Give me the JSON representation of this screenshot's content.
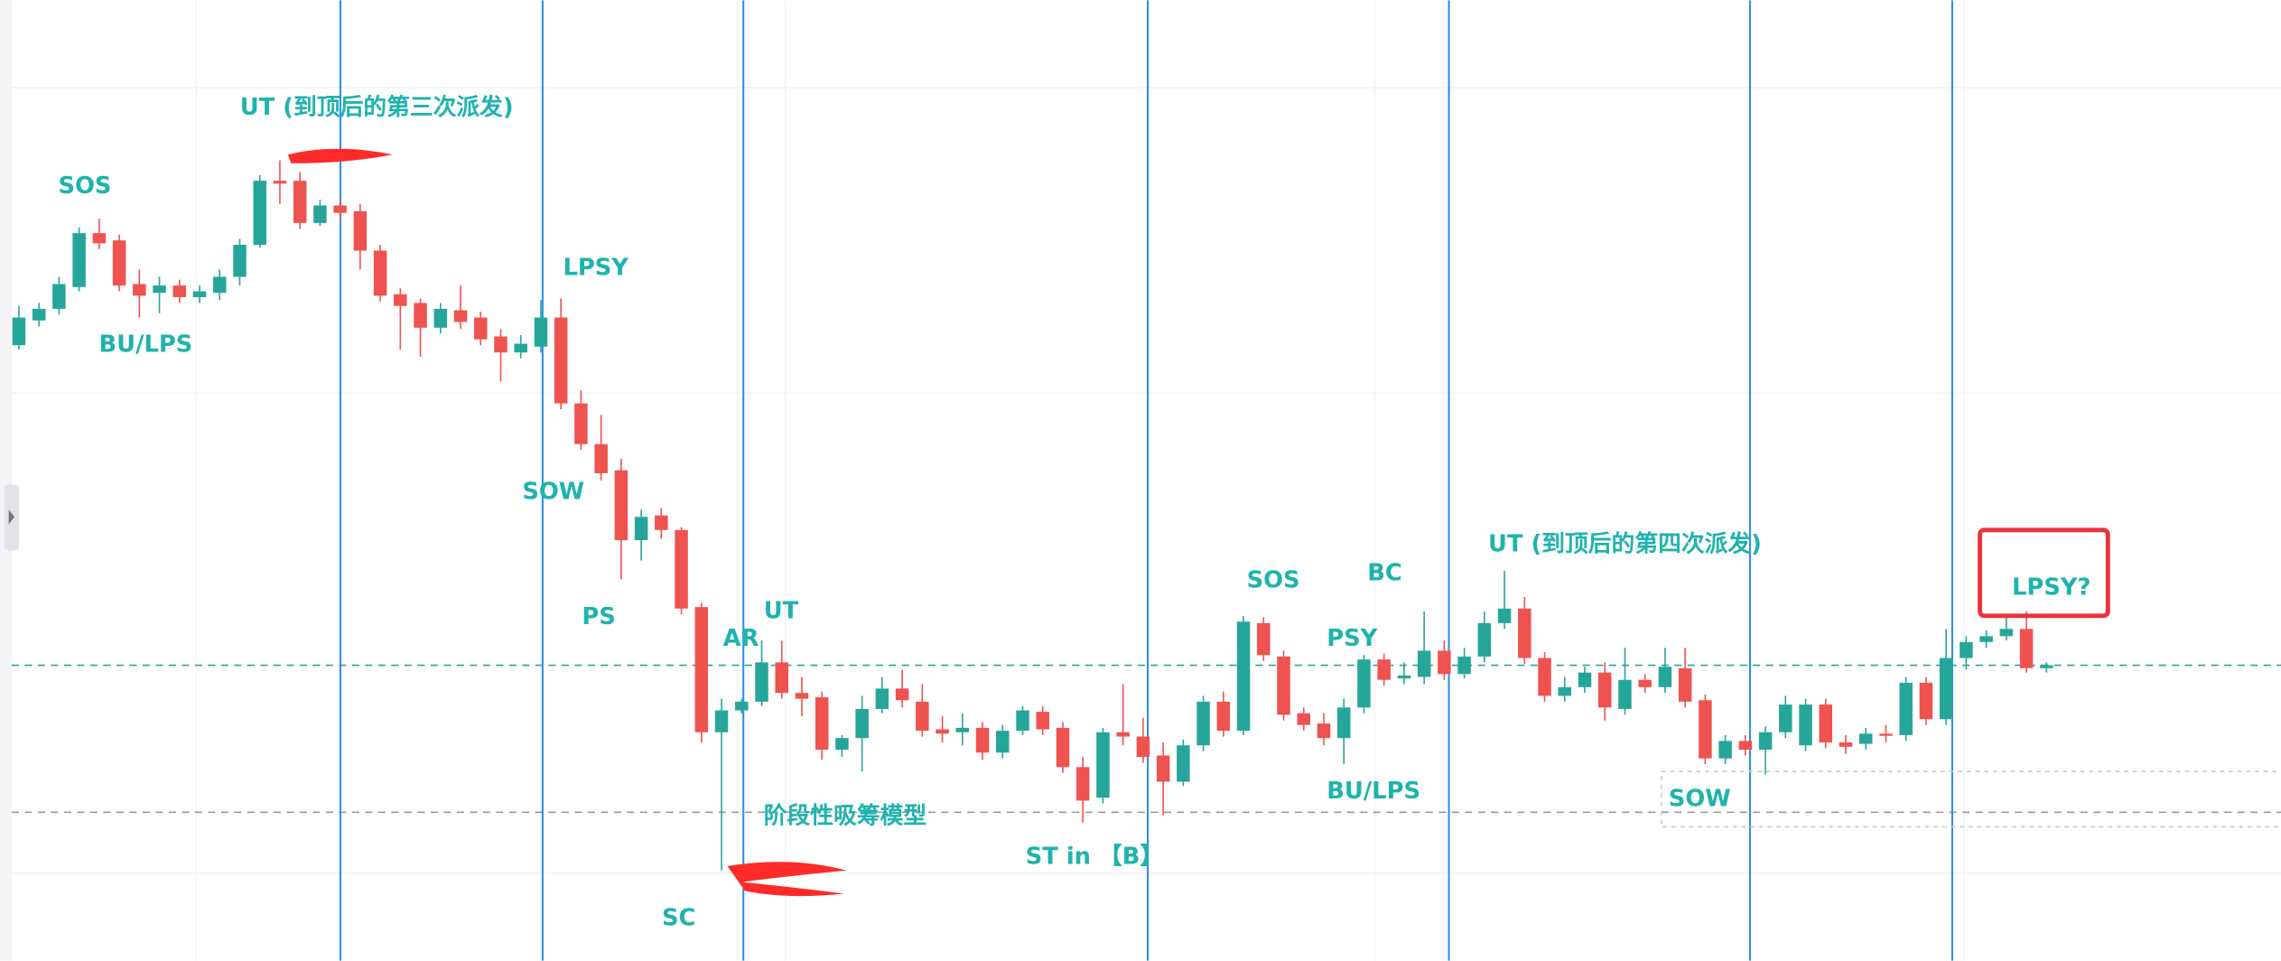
{
  "chart_data": {
    "type": "candlestick",
    "up_color": "#26a69a",
    "down_color": "#ef5350",
    "ylim": [
      0,
      660
    ],
    "open": [
      423,
      440,
      448,
      463,
      500,
      495,
      465,
      459,
      464,
      456,
      459,
      470,
      492,
      536,
      536,
      507,
      519,
      515,
      488,
      458,
      452,
      435,
      447,
      442,
      429,
      418,
      422,
      442,
      383,
      355,
      337,
      289,
      306,
      296,
      243,
      157,
      172,
      178,
      205,
      184,
      181,
      145,
      153,
      173,
      187,
      178,
      159,
      157,
      160,
      143,
      158,
      171,
      160,
      133,
      112,
      157,
      154,
      141,
      123,
      148,
      178,
      158,
      232,
      209,
      170,
      163,
      153,
      174,
      207,
      194,
      195,
      213,
      197,
      209,
      232,
      242,
      208,
      182,
      188,
      198,
      173,
      193,
      188,
      201,
      179,
      139,
      151,
      145,
      157,
      148,
      176,
      150,
      149,
      156,
      155,
      191,
      166,
      208,
      219,
      223,
      228,
      201
    ],
    "high": [
      450,
      452,
      470,
      504,
      510,
      499,
      475,
      470,
      468,
      464,
      475,
      496,
      540,
      550,
      542,
      523,
      523,
      520,
      492,
      462,
      455,
      452,
      464,
      446,
      434,
      430,
      454,
      455,
      392,
      375,
      345,
      310,
      311,
      298,
      246,
      180,
      180,
      220,
      220,
      195,
      185,
      155,
      182,
      195,
      200,
      190,
      168,
      170,
      164,
      162,
      175,
      175,
      164,
      140,
      160,
      190,
      167,
      150,
      152,
      182,
      185,
      237,
      236,
      213,
      174,
      170,
      180,
      210,
      211,
      205,
      240,
      220,
      215,
      240,
      268,
      250,
      212,
      195,
      202,
      205,
      215,
      197,
      215,
      215,
      183,
      155,
      155,
      161,
      182,
      180,
      180,
      155,
      160,
      162,
      195,
      195,
      228,
      223,
      227,
      236,
      240,
      205
    ],
    "low": [
      420,
      436,
      444,
      460,
      489,
      460,
      442,
      445,
      452,
      452,
      454,
      464,
      490,
      520,
      503,
      505,
      510,
      475,
      453,
      420,
      415,
      431,
      434,
      423,
      398,
      414,
      418,
      379,
      351,
      330,
      262,
      275,
      290,
      238,
      150,
      62,
      170,
      175,
      180,
      168,
      138,
      140,
      130,
      170,
      174,
      154,
      150,
      148,
      138,
      139,
      155,
      155,
      129,
      95,
      108,
      148,
      136,
      100,
      120,
      144,
      154,
      155,
      206,
      165,
      158,
      148,
      135,
      170,
      189,
      190,
      190,
      193,
      194,
      205,
      228,
      204,
      178,
      178,
      184,
      165,
      169,
      184,
      184,
      174,
      135,
      135,
      141,
      128,
      153,
      144,
      146,
      142,
      145,
      150,
      151,
      162,
      162,
      200,
      215,
      220,
      198,
      198
    ],
    "close": [
      442,
      448,
      465,
      500,
      493,
      464,
      457,
      464,
      456,
      460,
      470,
      492,
      536,
      534,
      507,
      519,
      514,
      488,
      457,
      450,
      435,
      448,
      439,
      427,
      418,
      424,
      442,
      383,
      355,
      335,
      289,
      305,
      296,
      242,
      157,
      172,
      178,
      205,
      184,
      180,
      145,
      153,
      173,
      187,
      179,
      158,
      156,
      160,
      143,
      158,
      172,
      159,
      133,
      110,
      157,
      154,
      140,
      123,
      148,
      178,
      158,
      233,
      210,
      169,
      162,
      153,
      174,
      207,
      193,
      196,
      213,
      197,
      209,
      232,
      242,
      208,
      182,
      188,
      198,
      174,
      193,
      188,
      202,
      178,
      139,
      151,
      145,
      157,
      176,
      176,
      150,
      147,
      156,
      155,
      191,
      166,
      208,
      219,
      223,
      228,
      201,
      203
    ],
    "levels": [
      {
        "value": 203,
        "color": "#26a69a"
      },
      {
        "value": 102,
        "color": "#999999"
      }
    ],
    "annotations": [
      "UT (到顶后的第三次派发)",
      "SOS",
      "BU/LPS",
      "LPSY",
      "SOW",
      "PS",
      "AR",
      "UT",
      "阶段性吸筹模型",
      "SC",
      "ST in 【B】",
      "SOS",
      "BC",
      "PSY",
      "UT (到顶后的第四次派发)",
      "BU/LPS",
      "SOW",
      "LPSY?"
    ]
  }
}
